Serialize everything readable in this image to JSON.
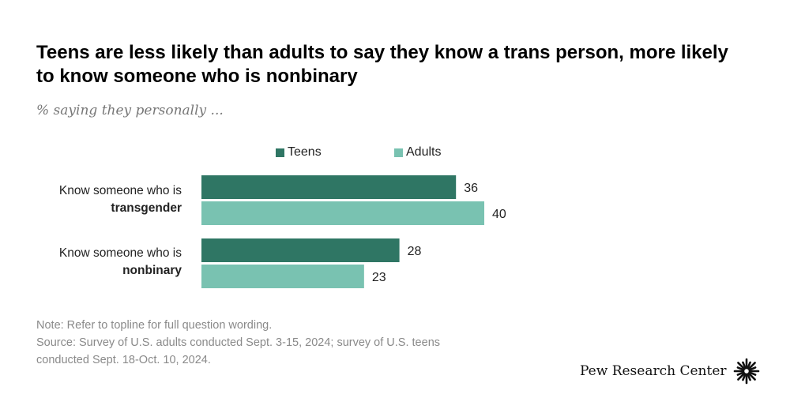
{
  "chart_data": {
    "type": "bar",
    "orientation": "horizontal",
    "title": "Teens are less likely than adults to say they know a trans person, more likely to know someone who is nonbinary",
    "subtitle": "% saying they personally ...",
    "categories": [
      {
        "prefix": "Know someone who is",
        "bold": "transgender"
      },
      {
        "prefix": "Know someone who is",
        "bold": "nonbinary"
      }
    ],
    "series": [
      {
        "name": "Teens",
        "color": "#2f7664",
        "values": [
          36,
          28
        ]
      },
      {
        "name": "Adults",
        "color": "#79c2b1",
        "values": [
          40,
          23
        ]
      }
    ],
    "legend_position": "top",
    "grid": false,
    "xlim": [
      0,
      40
    ]
  },
  "notes": {
    "note": "Note: Refer to topline for full question wording.",
    "source_line1": "Source: Survey of U.S. adults conducted Sept. 3-15, 2024; survey of U.S. teens",
    "source_line2": "conducted Sept. 18-Oct. 10, 2024."
  },
  "brand": {
    "name": "Pew Research Center",
    "logo_icon": "sunburst-logo-icon"
  }
}
